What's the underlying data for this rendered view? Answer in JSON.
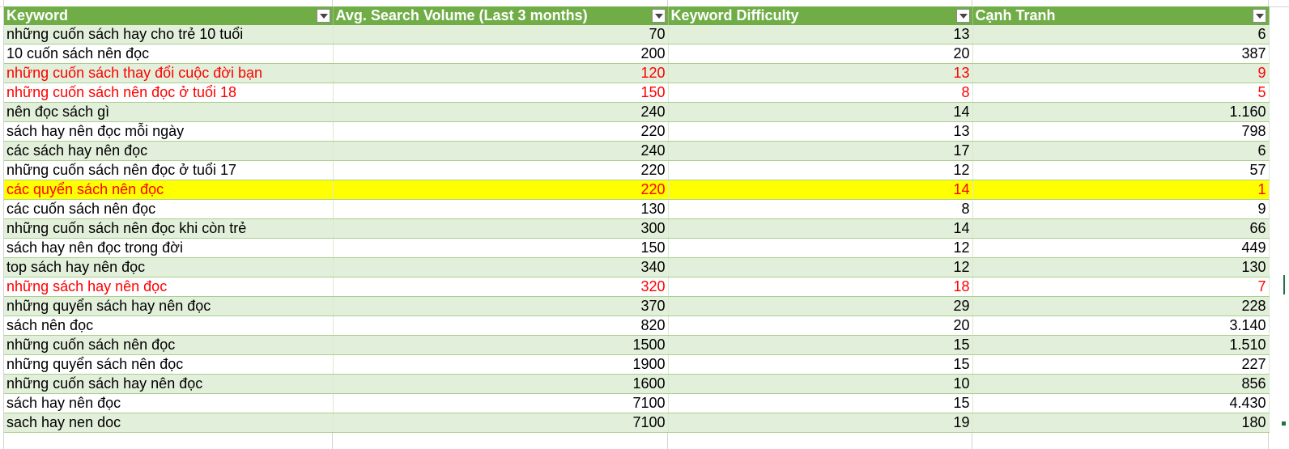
{
  "headers": [
    "Keyword",
    "Avg. Search Volume (Last 3 months)",
    "Keyword Difficulty",
    "Cạnh Tranh"
  ],
  "colors": {
    "header_bg": "#70ad47",
    "band_bg": "#e2efda",
    "highlight_bg": "#ffff00",
    "alert_text": "#ff0000"
  },
  "icons": {
    "filter": "filter-dropdown-icon"
  },
  "rows": [
    {
      "keyword": "những cuốn sách hay cho trẻ 10 tuổi",
      "volume": "70",
      "difficulty": "13",
      "competition": "6",
      "style": "normal"
    },
    {
      "keyword": "10 cuốn sách nên đọc",
      "volume": "200",
      "difficulty": "20",
      "competition": "387",
      "style": "normal"
    },
    {
      "keyword": "những cuốn sách thay đổi cuộc đời bạn",
      "volume": "120",
      "difficulty": "13",
      "competition": "9",
      "style": "red"
    },
    {
      "keyword": "những cuốn sách nên đọc ở tuổi 18",
      "volume": "150",
      "difficulty": "8",
      "competition": "5",
      "style": "red"
    },
    {
      "keyword": "nên đọc sách gì",
      "volume": "240",
      "difficulty": "14",
      "competition": "1.160",
      "style": "normal"
    },
    {
      "keyword": "sách hay nên đọc mỗi ngày",
      "volume": "220",
      "difficulty": "13",
      "competition": "798",
      "style": "normal"
    },
    {
      "keyword": "các sách hay nên đọc",
      "volume": "240",
      "difficulty": "17",
      "competition": "6",
      "style": "normal"
    },
    {
      "keyword": "những cuốn sách nên đọc ở tuổi 17",
      "volume": "220",
      "difficulty": "12",
      "competition": "57",
      "style": "normal"
    },
    {
      "keyword": "các quyển sách nên đọc",
      "volume": "220",
      "difficulty": "14",
      "competition": "1",
      "style": "highlight"
    },
    {
      "keyword": "các cuốn sách nên đọc",
      "volume": "130",
      "difficulty": "8",
      "competition": "9",
      "style": "normal"
    },
    {
      "keyword": "những cuốn sách nên đọc khi còn trẻ",
      "volume": "300",
      "difficulty": "14",
      "competition": "66",
      "style": "normal"
    },
    {
      "keyword": "sách hay nên đọc trong đời",
      "volume": "150",
      "difficulty": "12",
      "competition": "449",
      "style": "normal"
    },
    {
      "keyword": "top sách hay nên đọc",
      "volume": "340",
      "difficulty": "12",
      "competition": "130",
      "style": "normal"
    },
    {
      "keyword": "những sách hay nên đọc",
      "volume": "320",
      "difficulty": "18",
      "competition": "7",
      "style": "red"
    },
    {
      "keyword": "những quyển sách hay nên đọc",
      "volume": "370",
      "difficulty": "29",
      "competition": "228",
      "style": "normal"
    },
    {
      "keyword": "sách nên đọc",
      "volume": "820",
      "difficulty": "20",
      "competition": "3.140",
      "style": "normal"
    },
    {
      "keyword": "những cuốn sách nên đọc",
      "volume": "1500",
      "difficulty": "15",
      "competition": "1.510",
      "style": "normal"
    },
    {
      "keyword": "những quyển sách nên đọc",
      "volume": "1900",
      "difficulty": "15",
      "competition": "227",
      "style": "normal"
    },
    {
      "keyword": "những cuốn sách hay nên đọc",
      "volume": "1600",
      "difficulty": "10",
      "competition": "856",
      "style": "normal"
    },
    {
      "keyword": "sách hay nên đọc",
      "volume": "7100",
      "difficulty": "15",
      "competition": "4.430",
      "style": "normal"
    },
    {
      "keyword": "sach hay nen doc",
      "volume": "7100",
      "difficulty": "19",
      "competition": "180",
      "style": "normal"
    }
  ]
}
